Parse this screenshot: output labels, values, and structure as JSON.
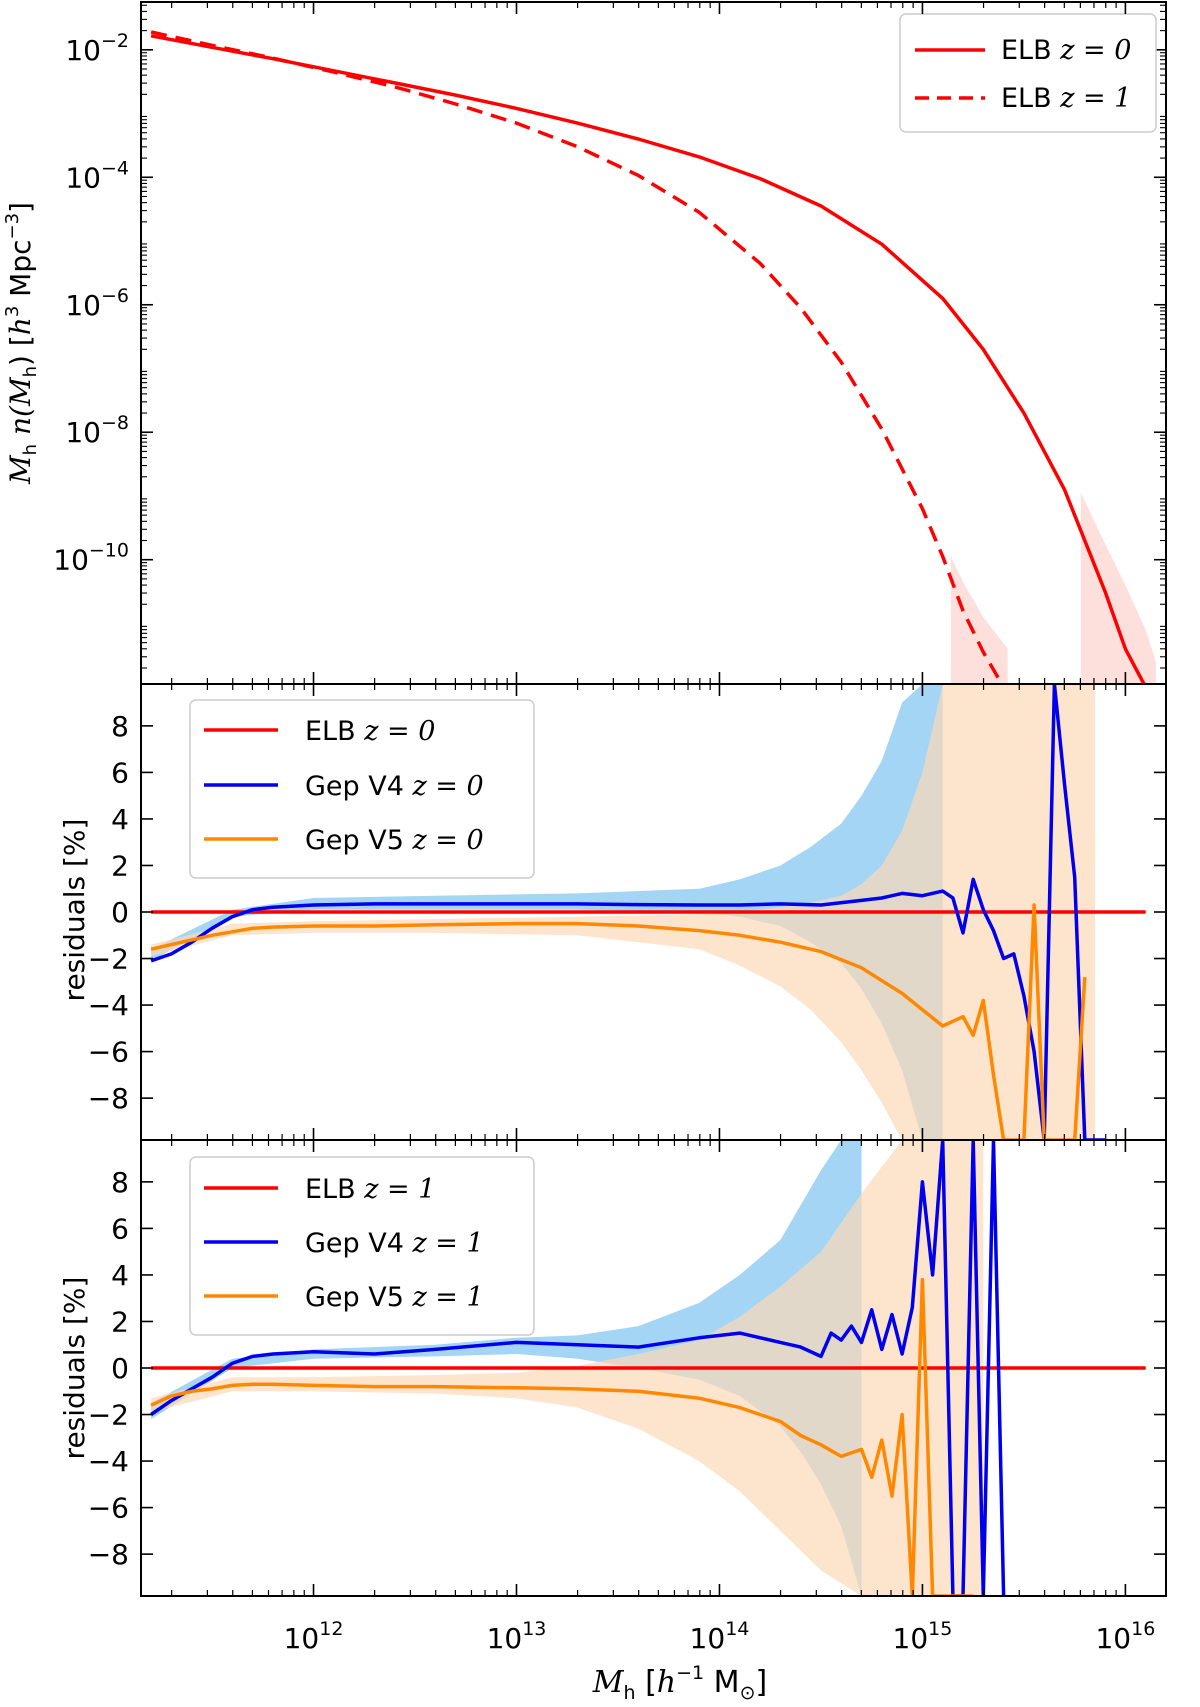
{
  "figure": {
    "xlabel": "M_h [h^-1 M_⊙]",
    "xlabel_parts": {
      "sym": "M",
      "sub": "h",
      "open": " [",
      "h": "h",
      "exp": "−1",
      "unit": " M",
      "odot": "⊙",
      "close": "]"
    },
    "xlim_log10": [
      11.15,
      16.2
    ],
    "xticks_log10": [
      12,
      13,
      14,
      15,
      16
    ],
    "xtick_labels": {
      "base": "10",
      "exps": [
        "12",
        "13",
        "14",
        "15",
        "16"
      ]
    }
  },
  "chart_data": [
    {
      "type": "line",
      "panel": "top",
      "title": "",
      "ylabel": "M_h n(M_h) [h^3 Mpc^-3]",
      "ylabel_parts": {
        "sym": "M",
        "sub": "h",
        "n": " n(",
        "M2": "M",
        "sub2": "h",
        "close": ") [",
        "h": "h",
        "exp": "3",
        "unit": " Mpc",
        "exp2": "−3",
        "end": "]"
      },
      "yscale": "log",
      "ylim_log10": [
        -11.95,
        -1.25
      ],
      "yticks_log10": [
        -2,
        -4,
        -6,
        -8,
        -10
      ],
      "ytick_labels": {
        "base": "10",
        "exps": [
          "−2",
          "−4",
          "−6",
          "−8",
          "−10"
        ]
      },
      "legend_position": "top-right",
      "series": [
        {
          "name": "ELB z=0",
          "label": "ELB ",
          "zlabel": "z = 0",
          "color": "#ff0000",
          "dash": "solid",
          "x_log10": [
            11.2,
            11.5,
            11.8,
            12.1,
            12.4,
            12.7,
            13.0,
            13.3,
            13.6,
            13.9,
            14.2,
            14.5,
            14.8,
            15.1,
            15.3,
            15.5,
            15.7,
            15.9,
            16.0,
            16.1
          ],
          "y_log10": [
            -1.78,
            -1.96,
            -2.14,
            -2.33,
            -2.52,
            -2.71,
            -2.92,
            -3.15,
            -3.4,
            -3.68,
            -4.02,
            -4.45,
            -5.05,
            -5.9,
            -6.7,
            -7.7,
            -8.9,
            -10.5,
            -11.4,
            -12.0
          ],
          "band_x_log10": [
            15.78,
            15.9,
            16.0,
            16.1,
            16.15
          ],
          "band_upper_log10": [
            -8.95,
            -9.75,
            -10.4,
            -11.1,
            -11.6
          ],
          "band_lower_log10": [
            -11.95,
            -11.95,
            -11.95,
            -11.95,
            -11.95
          ]
        },
        {
          "name": "ELB z=1",
          "label": "ELB ",
          "zlabel": "z = 1",
          "color": "#ff0000",
          "dash": "dashed",
          "x_log10": [
            11.2,
            11.5,
            11.8,
            12.1,
            12.4,
            12.7,
            13.0,
            13.3,
            13.6,
            13.9,
            14.2,
            14.4,
            14.6,
            14.8,
            15.0,
            15.1,
            15.2,
            15.3,
            15.4
          ],
          "y_log10": [
            -1.72,
            -1.93,
            -2.13,
            -2.35,
            -2.58,
            -2.85,
            -3.15,
            -3.52,
            -3.97,
            -4.55,
            -5.35,
            -6.05,
            -6.9,
            -7.95,
            -9.2,
            -9.95,
            -10.8,
            -11.45,
            -12.0
          ],
          "band_x_log10": [
            15.14,
            15.2,
            15.3,
            15.42
          ],
          "band_upper_log10": [
            -9.95,
            -10.35,
            -10.9,
            -11.4
          ],
          "band_lower_log10": [
            -11.95,
            -11.95,
            -11.95,
            -11.95
          ]
        }
      ]
    },
    {
      "type": "line",
      "panel": "middle",
      "ylabel": "residuals [%]",
      "ylim": [
        -9.8,
        9.8
      ],
      "yticks": [
        8,
        6,
        4,
        2,
        0,
        -2,
        -4,
        -6,
        -8
      ],
      "ytick_labels": [
        "8",
        "6",
        "4",
        "2",
        "0",
        "−2",
        "−4",
        "−6",
        "−8"
      ],
      "legend_position": "top-left",
      "series": [
        {
          "name": "ELB z=0",
          "label": "ELB ",
          "zlabel": "z = 0",
          "color": "#ff0000",
          "x_log10": [
            11.2,
            16.1
          ],
          "y": [
            0,
            0
          ]
        },
        {
          "name": "Gep V4 z=0",
          "label": "Gep V4 ",
          "zlabel": "z = 0",
          "color": "#0000ee",
          "x_log10": [
            11.2,
            11.3,
            11.4,
            11.5,
            11.6,
            11.7,
            11.8,
            12.0,
            12.3,
            12.6,
            13.0,
            13.3,
            13.6,
            13.9,
            14.1,
            14.3,
            14.5,
            14.7,
            14.8,
            14.9,
            15.0,
            15.1,
            15.15,
            15.2,
            15.25,
            15.3,
            15.35,
            15.4,
            15.45,
            15.5,
            15.55,
            15.6,
            15.65,
            15.7,
            15.75,
            15.8,
            15.85,
            15.9
          ],
          "y": [
            -2.1,
            -1.8,
            -1.3,
            -0.7,
            -0.2,
            0.1,
            0.2,
            0.3,
            0.35,
            0.35,
            0.35,
            0.35,
            0.32,
            0.3,
            0.3,
            0.35,
            0.3,
            0.5,
            0.6,
            0.8,
            0.7,
            0.9,
            0.6,
            -0.9,
            1.4,
            0.1,
            -0.8,
            -2.0,
            -1.8,
            -3.6,
            -6.0,
            -9.8,
            9.8,
            5.5,
            1.5,
            -9.8,
            -9.8,
            -9.8
          ]
        },
        {
          "name": "Gep V5 z=0",
          "label": "Gep V5 ",
          "zlabel": "z = 0",
          "color": "#ff8800",
          "x_log10": [
            11.2,
            11.3,
            11.4,
            11.5,
            11.6,
            11.7,
            11.8,
            12.0,
            12.3,
            12.6,
            13.0,
            13.3,
            13.6,
            13.9,
            14.1,
            14.3,
            14.5,
            14.7,
            14.9,
            15.0,
            15.1,
            15.2,
            15.25,
            15.3,
            15.35,
            15.4,
            15.45,
            15.5,
            15.55,
            15.6,
            15.65,
            15.7,
            15.75,
            15.8
          ],
          "y": [
            -1.6,
            -1.4,
            -1.2,
            -1.0,
            -0.85,
            -0.7,
            -0.65,
            -0.6,
            -0.6,
            -0.55,
            -0.5,
            -0.5,
            -0.6,
            -0.8,
            -1.0,
            -1.3,
            -1.7,
            -2.4,
            -3.5,
            -4.2,
            -4.9,
            -4.5,
            -5.3,
            -3.8,
            -7.0,
            -9.8,
            -9.8,
            -9.8,
            0.3,
            -9.8,
            -9.8,
            -9.8,
            -9.8,
            -2.8
          ]
        }
      ],
      "bands": [
        {
          "color": "#9fd3f3",
          "x_log10": [
            11.2,
            11.6,
            12.0,
            12.6,
            13.3,
            13.9,
            14.1,
            14.3,
            14.45,
            14.6,
            14.7,
            14.8,
            14.9,
            15.0,
            15.1
          ],
          "upper": [
            -1.6,
            0.1,
            0.6,
            0.7,
            0.8,
            1.0,
            1.4,
            2.0,
            2.8,
            3.8,
            5.0,
            6.5,
            9.0,
            9.8,
            9.8
          ],
          "lower": [
            -2.1,
            -0.2,
            0.1,
            0.1,
            0.1,
            0.0,
            -0.2,
            -0.6,
            -1.3,
            -2.2,
            -3.3,
            -4.8,
            -6.8,
            -9.8,
            -9.8
          ]
        },
        {
          "color": "#fbd8b8",
          "x_log10": [
            11.2,
            11.6,
            12.0,
            12.6,
            13.3,
            13.9,
            14.1,
            14.3,
            14.45,
            14.6,
            14.7,
            14.8,
            14.9,
            15.0,
            15.1,
            15.2,
            15.5,
            15.85
          ],
          "upper": [
            -1.4,
            -0.5,
            -0.4,
            -0.3,
            -0.2,
            -0.1,
            0.0,
            0.2,
            0.4,
            0.7,
            1.2,
            2.0,
            3.5,
            6.0,
            9.8,
            9.8,
            9.8,
            9.8
          ],
          "lower": [
            -1.9,
            -1.0,
            -0.9,
            -0.9,
            -1.0,
            -1.6,
            -2.3,
            -3.2,
            -4.2,
            -5.6,
            -6.8,
            -8.2,
            -9.8,
            -9.8,
            -9.8,
            -9.8,
            -9.8,
            -9.8
          ]
        }
      ]
    },
    {
      "type": "line",
      "panel": "bottom",
      "ylabel": "residuals [%]",
      "ylim": [
        -9.8,
        9.8
      ],
      "yticks": [
        8,
        6,
        4,
        2,
        0,
        -2,
        -4,
        -6,
        -8
      ],
      "ytick_labels": [
        "8",
        "6",
        "4",
        "2",
        "0",
        "−2",
        "−4",
        "−6",
        "−8"
      ],
      "legend_position": "top-left",
      "series": [
        {
          "name": "ELB z=1",
          "label": "ELB ",
          "zlabel": "z = 1",
          "color": "#ff0000",
          "x_log10": [
            11.2,
            16.1
          ],
          "y": [
            0,
            0
          ]
        },
        {
          "name": "Gep V4 z=1",
          "label": "Gep V4 ",
          "zlabel": "z = 1",
          "color": "#0000ee",
          "x_log10": [
            11.2,
            11.3,
            11.4,
            11.5,
            11.6,
            11.7,
            11.8,
            12.0,
            12.3,
            12.6,
            13.0,
            13.3,
            13.6,
            13.9,
            14.1,
            14.3,
            14.4,
            14.5,
            14.55,
            14.6,
            14.65,
            14.7,
            14.75,
            14.8,
            14.85,
            14.9,
            14.95,
            15.0,
            15.05,
            15.1,
            15.15,
            15.2,
            15.25,
            15.3,
            15.35,
            15.4
          ],
          "y": [
            -2.0,
            -1.4,
            -0.9,
            -0.4,
            0.2,
            0.5,
            0.6,
            0.7,
            0.6,
            0.8,
            1.1,
            1.0,
            0.9,
            1.3,
            1.5,
            1.1,
            0.9,
            0.5,
            1.5,
            1.2,
            1.8,
            1.1,
            2.5,
            0.8,
            2.3,
            0.6,
            2.6,
            8.0,
            4.0,
            9.8,
            -9.8,
            -9.8,
            9.8,
            -9.8,
            9.8,
            -9.8
          ]
        },
        {
          "name": "Gep V5 z=1",
          "label": "Gep V5 ",
          "zlabel": "z = 1",
          "color": "#ff8800",
          "x_log10": [
            11.2,
            11.3,
            11.4,
            11.5,
            11.6,
            11.7,
            11.8,
            12.0,
            12.3,
            12.6,
            13.0,
            13.3,
            13.6,
            13.9,
            14.1,
            14.3,
            14.4,
            14.5,
            14.6,
            14.7,
            14.75,
            14.8,
            14.85,
            14.9,
            14.95,
            15.0,
            15.05,
            15.1,
            15.15,
            15.2,
            15.25
          ],
          "y": [
            -1.6,
            -1.2,
            -1.0,
            -0.9,
            -0.75,
            -0.7,
            -0.7,
            -0.75,
            -0.8,
            -0.8,
            -0.85,
            -0.9,
            -1.0,
            -1.3,
            -1.7,
            -2.3,
            -2.9,
            -3.3,
            -3.8,
            -3.5,
            -4.7,
            -3.1,
            -5.5,
            -2.0,
            -9.8,
            3.8,
            -9.8,
            -9.8,
            -9.8,
            -9.8,
            -9.8
          ]
        }
      ],
      "bands": [
        {
          "color": "#9fd3f3",
          "x_log10": [
            11.2,
            11.6,
            12.0,
            12.6,
            13.0,
            13.3,
            13.6,
            13.9,
            14.1,
            14.3,
            14.4,
            14.5,
            14.6,
            14.7
          ],
          "upper": [
            -1.5,
            0.4,
            0.8,
            1.0,
            1.3,
            1.4,
            1.8,
            2.8,
            4.0,
            5.5,
            7.0,
            8.5,
            9.8,
            9.8
          ],
          "lower": [
            -2.2,
            0.0,
            0.4,
            0.5,
            0.6,
            0.4,
            0.0,
            -0.5,
            -1.2,
            -2.5,
            -3.6,
            -5.0,
            -6.8,
            -9.8
          ]
        },
        {
          "color": "#fbd8b8",
          "x_log10": [
            11.2,
            11.6,
            12.0,
            12.6,
            13.0,
            13.3,
            13.6,
            13.9,
            14.1,
            14.3,
            14.5,
            14.7,
            14.9,
            15.1,
            15.3
          ],
          "upper": [
            -1.3,
            -0.4,
            -0.4,
            -0.3,
            -0.2,
            0.1,
            0.6,
            1.2,
            2.2,
            3.5,
            5.0,
            7.5,
            9.8,
            9.8,
            9.8
          ],
          "lower": [
            -1.9,
            -1.0,
            -1.0,
            -1.1,
            -1.3,
            -1.7,
            -2.6,
            -4.0,
            -5.3,
            -7.0,
            -8.7,
            -9.8,
            -9.8,
            -9.8,
            -9.8
          ]
        }
      ]
    }
  ]
}
